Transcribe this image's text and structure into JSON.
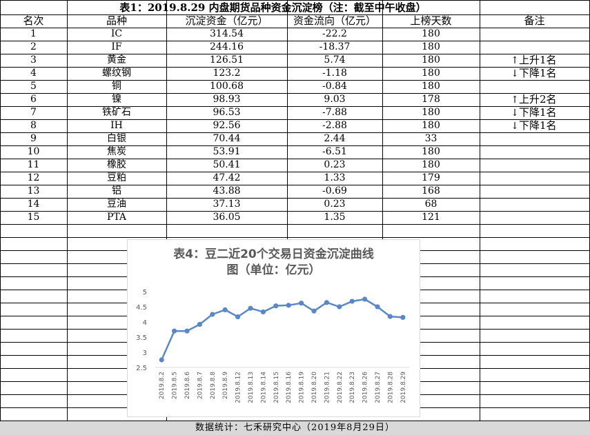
{
  "table": {
    "title": "表1：2019.8.29 内盘期货品种资金沉淀榜（注：截至中午收盘）",
    "headers": [
      "名次",
      "品种",
      "沉淀资金（亿元）",
      "资金流向（亿元）",
      "上榜天数",
      "备注"
    ],
    "rows": [
      {
        "rank": "1",
        "name": "IC",
        "fund": "314.54",
        "flow": "-22.2",
        "days": "180",
        "arrow": "",
        "remark": ""
      },
      {
        "rank": "2",
        "name": "IF",
        "fund": "244.16",
        "flow": "-18.37",
        "days": "180",
        "arrow": "",
        "remark": ""
      },
      {
        "rank": "3",
        "name": "黄金",
        "fund": "126.51",
        "flow": "5.74",
        "days": "180",
        "arrow": "↑",
        "remark": "上升1名"
      },
      {
        "rank": "4",
        "name": "螺纹钢",
        "fund": "123.2",
        "flow": "-1.18",
        "days": "180",
        "arrow": "↓",
        "remark": "下降1名"
      },
      {
        "rank": "5",
        "name": "铜",
        "fund": "100.68",
        "flow": "-0.84",
        "days": "180",
        "arrow": "",
        "remark": ""
      },
      {
        "rank": "6",
        "name": "镍",
        "fund": "98.93",
        "flow": "9.03",
        "days": "178",
        "arrow": "↑",
        "remark": "上升2名"
      },
      {
        "rank": "7",
        "name": "铁矿石",
        "fund": "96.53",
        "flow": "-7.88",
        "days": "180",
        "arrow": "↓",
        "remark": "下降1名"
      },
      {
        "rank": "8",
        "name": "IH",
        "fund": "92.56",
        "flow": "-2.88",
        "days": "180",
        "arrow": "↓",
        "remark": "下降1名"
      },
      {
        "rank": "9",
        "name": "白银",
        "fund": "70.44",
        "flow": "2.44",
        "days": "33",
        "arrow": "",
        "remark": ""
      },
      {
        "rank": "10",
        "name": "焦炭",
        "fund": "53.91",
        "flow": "-6.51",
        "days": "180",
        "arrow": "",
        "remark": ""
      },
      {
        "rank": "11",
        "name": "橡胶",
        "fund": "50.41",
        "flow": "0.23",
        "days": "180",
        "arrow": "",
        "remark": ""
      },
      {
        "rank": "12",
        "name": "豆粕",
        "fund": "47.42",
        "flow": "1.33",
        "days": "179",
        "arrow": "",
        "remark": ""
      },
      {
        "rank": "13",
        "name": "铝",
        "fund": "43.88",
        "flow": "-0.69",
        "days": "168",
        "arrow": "",
        "remark": ""
      },
      {
        "rank": "14",
        "name": "豆油",
        "fund": "37.13",
        "flow": "0.23",
        "days": "68",
        "arrow": "",
        "remark": ""
      },
      {
        "rank": "15",
        "name": "PTA",
        "fund": "36.05",
        "flow": "1.35",
        "days": "121",
        "arrow": "",
        "remark": ""
      }
    ]
  },
  "footer": "数据统计：七禾研究中心（2019年8月29日）",
  "chart_data": {
    "type": "line",
    "title": "表4：豆二近20个交易日资金沉淀曲线图（单位：亿元）",
    "title_lines": [
      "表4：豆二近20个交易日资金沉淀曲线",
      "图（单位：亿元）"
    ],
    "x": [
      "2019.8.2",
      "2019.8.5",
      "2019.8.6",
      "2019.8.7",
      "2019.8.8",
      "2019.8.9",
      "2019.8.12",
      "2019.8.13",
      "2019.8.14",
      "2019.8.15",
      "2019.8.16",
      "2019.8.19",
      "2019.8.20",
      "2019.8.21",
      "2019.8.22",
      "2019.8.23",
      "2019.8.26",
      "2019.8.27",
      "2019.8.28",
      "2019.8.29"
    ],
    "series": [
      {
        "name": "",
        "color": "#5b87c5",
        "values": [
          2.75,
          3.7,
          3.7,
          3.92,
          4.25,
          4.4,
          4.17,
          4.45,
          4.33,
          4.53,
          4.55,
          4.62,
          4.36,
          4.64,
          4.5,
          4.68,
          4.75,
          4.5,
          4.18,
          4.15
        ]
      }
    ],
    "ylim": [
      2.5,
      5
    ],
    "yticks": [
      "2.5",
      "3",
      "3.5",
      "4",
      "4.5",
      "5"
    ],
    "xlabel": "",
    "ylabel": "",
    "grid": false,
    "legend": "none"
  },
  "colors": {
    "footer_bg": "#d9d9d9",
    "chart_line": "#5b87c5",
    "chart_title": "#595959"
  }
}
